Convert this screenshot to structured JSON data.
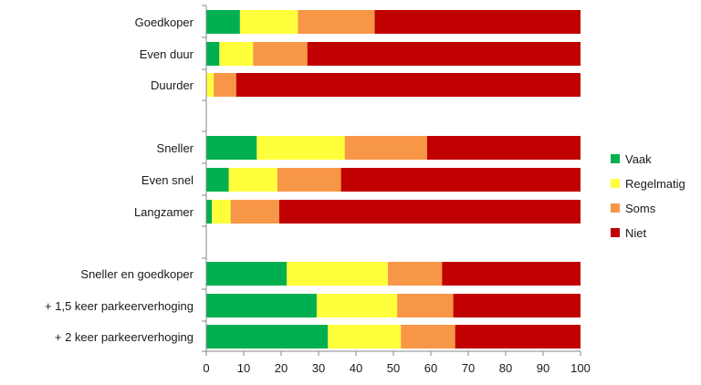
{
  "chart_data": {
    "type": "bar",
    "orientation": "horizontal",
    "stacked": true,
    "title": "",
    "xlabel": "",
    "ylabel": "",
    "xlim": [
      0,
      100
    ],
    "x_ticks": [
      0,
      10,
      20,
      30,
      40,
      50,
      60,
      70,
      80,
      90,
      100
    ],
    "grid": false,
    "legend_position": "right",
    "groups": [
      [
        "Goedkoper",
        "Even duur",
        "Duurder"
      ],
      [
        "Sneller",
        "Even snel",
        "Langzamer"
      ],
      [
        "Sneller en goedkoper",
        "+ 1,5 keer parkeerverhoging",
        "+ 2 keer parkeerverhoging"
      ]
    ],
    "categories": [
      "Goedkoper",
      "Even duur",
      "Duurder",
      "Sneller",
      "Even snel",
      "Langzamer",
      "Sneller en goedkoper",
      "+ 1,5 keer parkeerverhoging",
      "+ 2 keer parkeerverhoging"
    ],
    "series": [
      {
        "name": "Vaak",
        "color": "#00b050",
        "values": [
          9,
          3.5,
          0,
          13.5,
          6,
          1.5,
          21.5,
          29.5,
          32.5
        ]
      },
      {
        "name": "Regelmatig",
        "color": "#ffff3c",
        "values": [
          15.5,
          9,
          2,
          23.5,
          13,
          5,
          27,
          21.5,
          19.5
        ]
      },
      {
        "name": "Soms",
        "color": "#f79646",
        "values": [
          20.5,
          14.5,
          6,
          22,
          17,
          13,
          14.5,
          15,
          14.5
        ]
      },
      {
        "name": "Niet",
        "color": "#c00000",
        "values": [
          55,
          73,
          92,
          41,
          64,
          80.5,
          37,
          34,
          33.5
        ]
      }
    ]
  }
}
